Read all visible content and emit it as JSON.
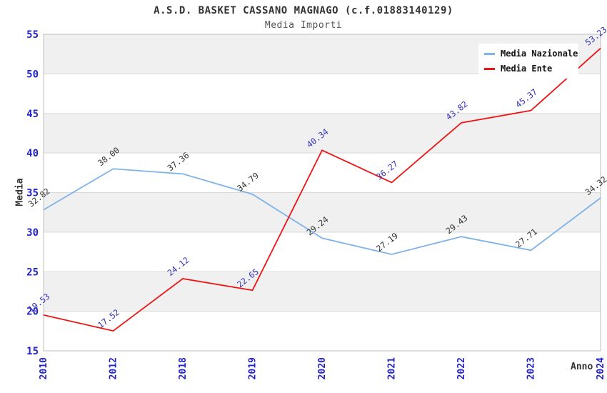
{
  "chart_data": {
    "type": "line",
    "title": "A.S.D. BASKET CASSANO MAGNAGO (c.f.01883140129)",
    "subtitle": "Media Importi",
    "xlabel": "Anno",
    "ylabel": "Media",
    "x_categories": [
      "2010",
      "2012",
      "2018",
      "2019",
      "2020",
      "2021",
      "2022",
      "2023",
      "2024"
    ],
    "series": [
      {
        "name": "Media Nazionale",
        "color": "#7FB3E8",
        "label_color": "#333333",
        "values": [
          32.82,
          38.0,
          37.36,
          34.79,
          29.24,
          27.19,
          29.43,
          27.71,
          34.32
        ]
      },
      {
        "name": "Media Ente",
        "color": "#EE1414",
        "label_color": "#3333BB",
        "values": [
          19.53,
          17.52,
          24.12,
          22.65,
          40.34,
          36.27,
          43.82,
          45.37,
          53.23
        ]
      }
    ],
    "ylim": [
      15,
      55
    ],
    "ytick_step": 5,
    "yticks": [
      15,
      20,
      25,
      30,
      35,
      40,
      45,
      50,
      55
    ],
    "grid": true,
    "bands": "alternating horizontal",
    "legend_position": "top-right",
    "value_label_decimals": 2,
    "colors": {
      "band": "#F0F0F0",
      "band_alt": "#FFFFFF",
      "grid": "#D9D9D9",
      "border": "#BDBDBD",
      "tick_label": "#2222CC",
      "title": "#333333",
      "subtitle": "#555555",
      "axis_title": "#333333",
      "legend_text": "#111111"
    }
  }
}
